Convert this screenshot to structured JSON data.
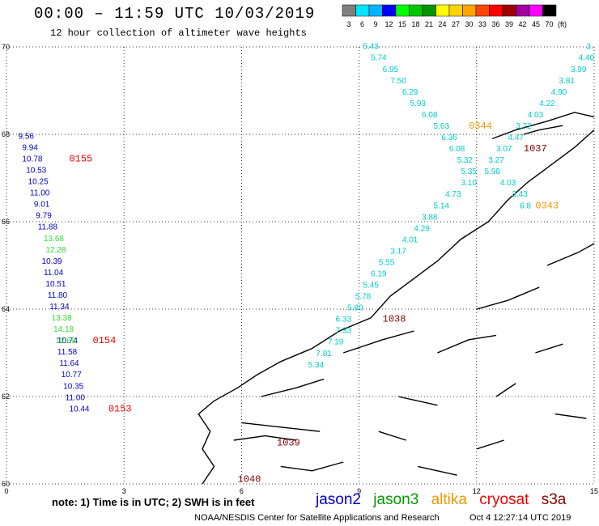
{
  "header": {
    "title": "00:00 – 11:59 UTC 10/03/2019",
    "subtitle": "12 hour collection of altimeter wave heights"
  },
  "legend": {
    "unit": "(ft)",
    "bins": [
      {
        "label": "3",
        "color": "#7f7f7f"
      },
      {
        "label": "6",
        "color": "#00e5ff"
      },
      {
        "label": "9",
        "color": "#00b4ff"
      },
      {
        "label": "12",
        "color": "#0000ff"
      },
      {
        "label": "15",
        "color": "#00ff00"
      },
      {
        "label": "18",
        "color": "#00c800"
      },
      {
        "label": "21",
        "color": "#009600"
      },
      {
        "label": "24",
        "color": "#ffff00"
      },
      {
        "label": "27",
        "color": "#ffd200"
      },
      {
        "label": "30",
        "color": "#ffa500"
      },
      {
        "label": "33",
        "color": "#ff4500"
      },
      {
        "label": "36",
        "color": "#ff0000"
      },
      {
        "label": "39",
        "color": "#a00000"
      },
      {
        "label": "42",
        "color": "#a000a0"
      },
      {
        "label": "45",
        "color": "#ff00ff"
      },
      {
        "label": "70",
        "color": "#000000"
      }
    ]
  },
  "axes": {
    "lon_labels": [
      "0",
      "3",
      "6",
      "9",
      "12",
      "15"
    ],
    "lat_labels": [
      "60",
      "62",
      "64",
      "66",
      "68",
      "70"
    ],
    "lon_range": [
      0,
      15
    ],
    "lat_range": [
      60,
      70
    ]
  },
  "tracks": [
    {
      "satellite": "jason2",
      "color": "#0000cc",
      "points": [
        {
          "lon": 0.3,
          "lat": 67.9,
          "value": "9.56"
        },
        {
          "lon": 0.4,
          "lat": 67.64,
          "value": "9.94"
        },
        {
          "lon": 0.4,
          "lat": 67.38,
          "value": "10.78"
        },
        {
          "lon": 0.5,
          "lat": 67.12,
          "value": "10.53"
        },
        {
          "lon": 0.55,
          "lat": 66.86,
          "value": "10.25"
        },
        {
          "lon": 0.6,
          "lat": 66.6,
          "value": "11.00"
        },
        {
          "lon": 0.7,
          "lat": 66.34,
          "value": "9.01"
        },
        {
          "lon": 0.75,
          "lat": 66.08,
          "value": "9.79"
        },
        {
          "lon": 0.8,
          "lat": 65.82,
          "value": "11.88"
        },
        {
          "lon": 0.9,
          "lat": 65.04,
          "value": "10.39"
        },
        {
          "lon": 0.95,
          "lat": 64.78,
          "value": "11.04"
        },
        {
          "lon": 1.0,
          "lat": 64.52,
          "value": "10.51"
        },
        {
          "lon": 1.05,
          "lat": 64.26,
          "value": "11.80"
        },
        {
          "lon": 1.1,
          "lat": 64.0,
          "value": "11.34"
        },
        {
          "lon": 1.3,
          "lat": 63.22,
          "value": "10.74"
        },
        {
          "lon": 1.3,
          "lat": 62.96,
          "value": "11.58"
        },
        {
          "lon": 1.35,
          "lat": 62.7,
          "value": "11.64"
        },
        {
          "lon": 1.4,
          "lat": 62.44,
          "value": "10.77"
        },
        {
          "lon": 1.45,
          "lat": 62.18,
          "value": "10.35"
        },
        {
          "lon": 1.5,
          "lat": 61.92,
          "value": "11.00"
        },
        {
          "lon": 1.6,
          "lat": 61.66,
          "value": "10.44"
        }
      ]
    },
    {
      "satellite": "jason3",
      "color": "#33dd33",
      "points": [
        {
          "lon": 0.95,
          "lat": 65.56,
          "value": "13.68"
        },
        {
          "lon": 1.0,
          "lat": 65.3,
          "value": "12.28"
        },
        {
          "lon": 1.15,
          "lat": 63.74,
          "value": "13.38"
        },
        {
          "lon": 1.2,
          "lat": 63.48,
          "value": "14.18"
        },
        {
          "lon": 1.25,
          "lat": 63.22,
          "value": "12.69"
        }
      ]
    },
    {
      "satellite": "altika",
      "color": "#00cccc",
      "points": [
        {
          "lon": 9.1,
          "lat": 69.95,
          "value": "5.43"
        },
        {
          "lon": 9.3,
          "lat": 69.69,
          "value": "5.74"
        },
        {
          "lon": 9.6,
          "lat": 69.43,
          "value": "6.95"
        },
        {
          "lon": 9.8,
          "lat": 69.17,
          "value": "7.50"
        },
        {
          "lon": 10.1,
          "lat": 68.91,
          "value": "6.29"
        },
        {
          "lon": 10.3,
          "lat": 68.65,
          "value": "5.93"
        },
        {
          "lon": 10.6,
          "lat": 68.39,
          "value": "6.08"
        },
        {
          "lon": 10.9,
          "lat": 68.13,
          "value": "5.63"
        },
        {
          "lon": 11.1,
          "lat": 67.87,
          "value": "6.36"
        },
        {
          "lon": 11.3,
          "lat": 67.61,
          "value": "6.08"
        },
        {
          "lon": 11.5,
          "lat": 67.35,
          "value": "5.32"
        },
        {
          "lon": 11.6,
          "lat": 67.09,
          "value": "5.35"
        },
        {
          "lon": 11.6,
          "lat": 66.83,
          "value": "3.10"
        },
        {
          "lon": 11.2,
          "lat": 66.57,
          "value": "4.73"
        },
        {
          "lon": 10.9,
          "lat": 66.31,
          "value": "5.14"
        },
        {
          "lon": 10.6,
          "lat": 66.05,
          "value": "3.88"
        },
        {
          "lon": 10.4,
          "lat": 65.79,
          "value": "4.29"
        },
        {
          "lon": 10.1,
          "lat": 65.53,
          "value": "4.01"
        },
        {
          "lon": 9.8,
          "lat": 65.27,
          "value": "3.17"
        },
        {
          "lon": 9.5,
          "lat": 65.01,
          "value": "5.55"
        },
        {
          "lon": 9.3,
          "lat": 64.75,
          "value": "6.19"
        },
        {
          "lon": 9.1,
          "lat": 64.49,
          "value": "5.45"
        },
        {
          "lon": 8.9,
          "lat": 64.23,
          "value": "5.78"
        },
        {
          "lon": 8.7,
          "lat": 63.97,
          "value": "5.80"
        },
        {
          "lon": 8.4,
          "lat": 63.71,
          "value": "6.33"
        },
        {
          "lon": 8.4,
          "lat": 63.45,
          "value": "7.33"
        },
        {
          "lon": 8.2,
          "lat": 63.19,
          "value": "7.19"
        },
        {
          "lon": 7.9,
          "lat": 62.93,
          "value": "7.81"
        },
        {
          "lon": 7.7,
          "lat": 62.67,
          "value": "5.34"
        },
        {
          "lon": 14.8,
          "lat": 69.95,
          "value": "3."
        },
        {
          "lon": 14.6,
          "lat": 69.69,
          "value": "4.40"
        },
        {
          "lon": 14.4,
          "lat": 69.43,
          "value": "3.99"
        },
        {
          "lon": 14.1,
          "lat": 69.17,
          "value": "3.81"
        },
        {
          "lon": 13.9,
          "lat": 68.91,
          "value": "4.90"
        },
        {
          "lon": 13.6,
          "lat": 68.65,
          "value": "4.22"
        },
        {
          "lon": 13.3,
          "lat": 68.39,
          "value": "4.03"
        },
        {
          "lon": 13.0,
          "lat": 68.13,
          "value": "3.72"
        },
        {
          "lon": 12.8,
          "lat": 67.87,
          "value": "4.47"
        },
        {
          "lon": 12.5,
          "lat": 67.61,
          "value": "3.07"
        },
        {
          "lon": 12.3,
          "lat": 67.35,
          "value": "3.27"
        },
        {
          "lon": 12.2,
          "lat": 67.09,
          "value": "5.98"
        },
        {
          "lon": 12.6,
          "lat": 66.83,
          "value": "4.03"
        },
        {
          "lon": 12.9,
          "lat": 66.57,
          "value": "3.43"
        },
        {
          "lon": 13.1,
          "lat": 66.31,
          "value": "6.8"
        }
      ]
    },
    {
      "satellite": "cryosat",
      "color": "#ee0000",
      "points": []
    },
    {
      "satellite": "s3a",
      "color": "#880000",
      "points": []
    }
  ],
  "time_labels": [
    {
      "text": "0155",
      "lon": 1.6,
      "lat": 67.38,
      "color": "#ee0000"
    },
    {
      "text": "0154",
      "lon": 2.2,
      "lat": 63.22,
      "color": "#ee0000"
    },
    {
      "text": "0153",
      "lon": 2.6,
      "lat": 61.66,
      "color": "#ee0000"
    },
    {
      "text": "0344",
      "lon": 11.8,
      "lat": 68.13,
      "color": "#ee9900"
    },
    {
      "text": "1037",
      "lon": 13.2,
      "lat": 67.61,
      "color": "#880000"
    },
    {
      "text": "0343",
      "lon": 13.5,
      "lat": 66.31,
      "color": "#ee9900"
    },
    {
      "text": "1038",
      "lon": 9.6,
      "lat": 63.71,
      "color": "#880000"
    },
    {
      "text": "1039",
      "lon": 6.9,
      "lat": 60.88,
      "color": "#880000"
    },
    {
      "text": "1040",
      "lon": 5.9,
      "lat": 60.05,
      "color": "#880000"
    }
  ],
  "footer": {
    "note": "note:  1) Time is in UTC;  2) SWH is in feet",
    "satellites": [
      {
        "name": "jason2",
        "color": "#0000cc"
      },
      {
        "name": "jason3",
        "color": "#009900"
      },
      {
        "name": "altika",
        "color": "#ee9900"
      },
      {
        "name": "cryosat",
        "color": "#ee0000"
      },
      {
        "name": "s3a",
        "color": "#880000"
      }
    ],
    "credit": "NOAA/NESDIS Center for Satellite Applications and Research",
    "timestamp": "Oct  4 12:27:14 UTC 2019"
  }
}
